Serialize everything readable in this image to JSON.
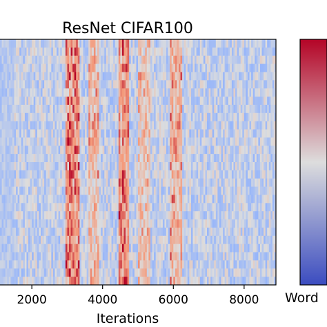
{
  "chart_data": {
    "type": "heatmap",
    "title": "ResNet CIFAR100",
    "xlabel": "Iterations",
    "ylabel": "",
    "xlim": [
      1100,
      8900
    ],
    "xticks": [
      {
        "value": 2000,
        "label": "2000"
      },
      {
        "value": 4000,
        "label": "4000"
      },
      {
        "value": 6000,
        "label": "6000"
      },
      {
        "value": 8000,
        "label": "8000"
      }
    ],
    "n_rows": 30,
    "colormap": "coolwarm",
    "colorbar": {
      "label": "Word",
      "low_color": "#3b4cc0",
      "mid_color": "#dddddd",
      "high_color": "#b40426"
    },
    "hot_bands": [
      {
        "from": 2950,
        "to": 3350,
        "strength": 0.85
      },
      {
        "from": 3600,
        "to": 3900,
        "strength": 0.55
      },
      {
        "from": 4450,
        "to": 4750,
        "strength": 0.8
      },
      {
        "from": 5000,
        "to": 5350,
        "strength": 0.45
      },
      {
        "from": 5900,
        "to": 6250,
        "strength": 0.6
      }
    ]
  }
}
